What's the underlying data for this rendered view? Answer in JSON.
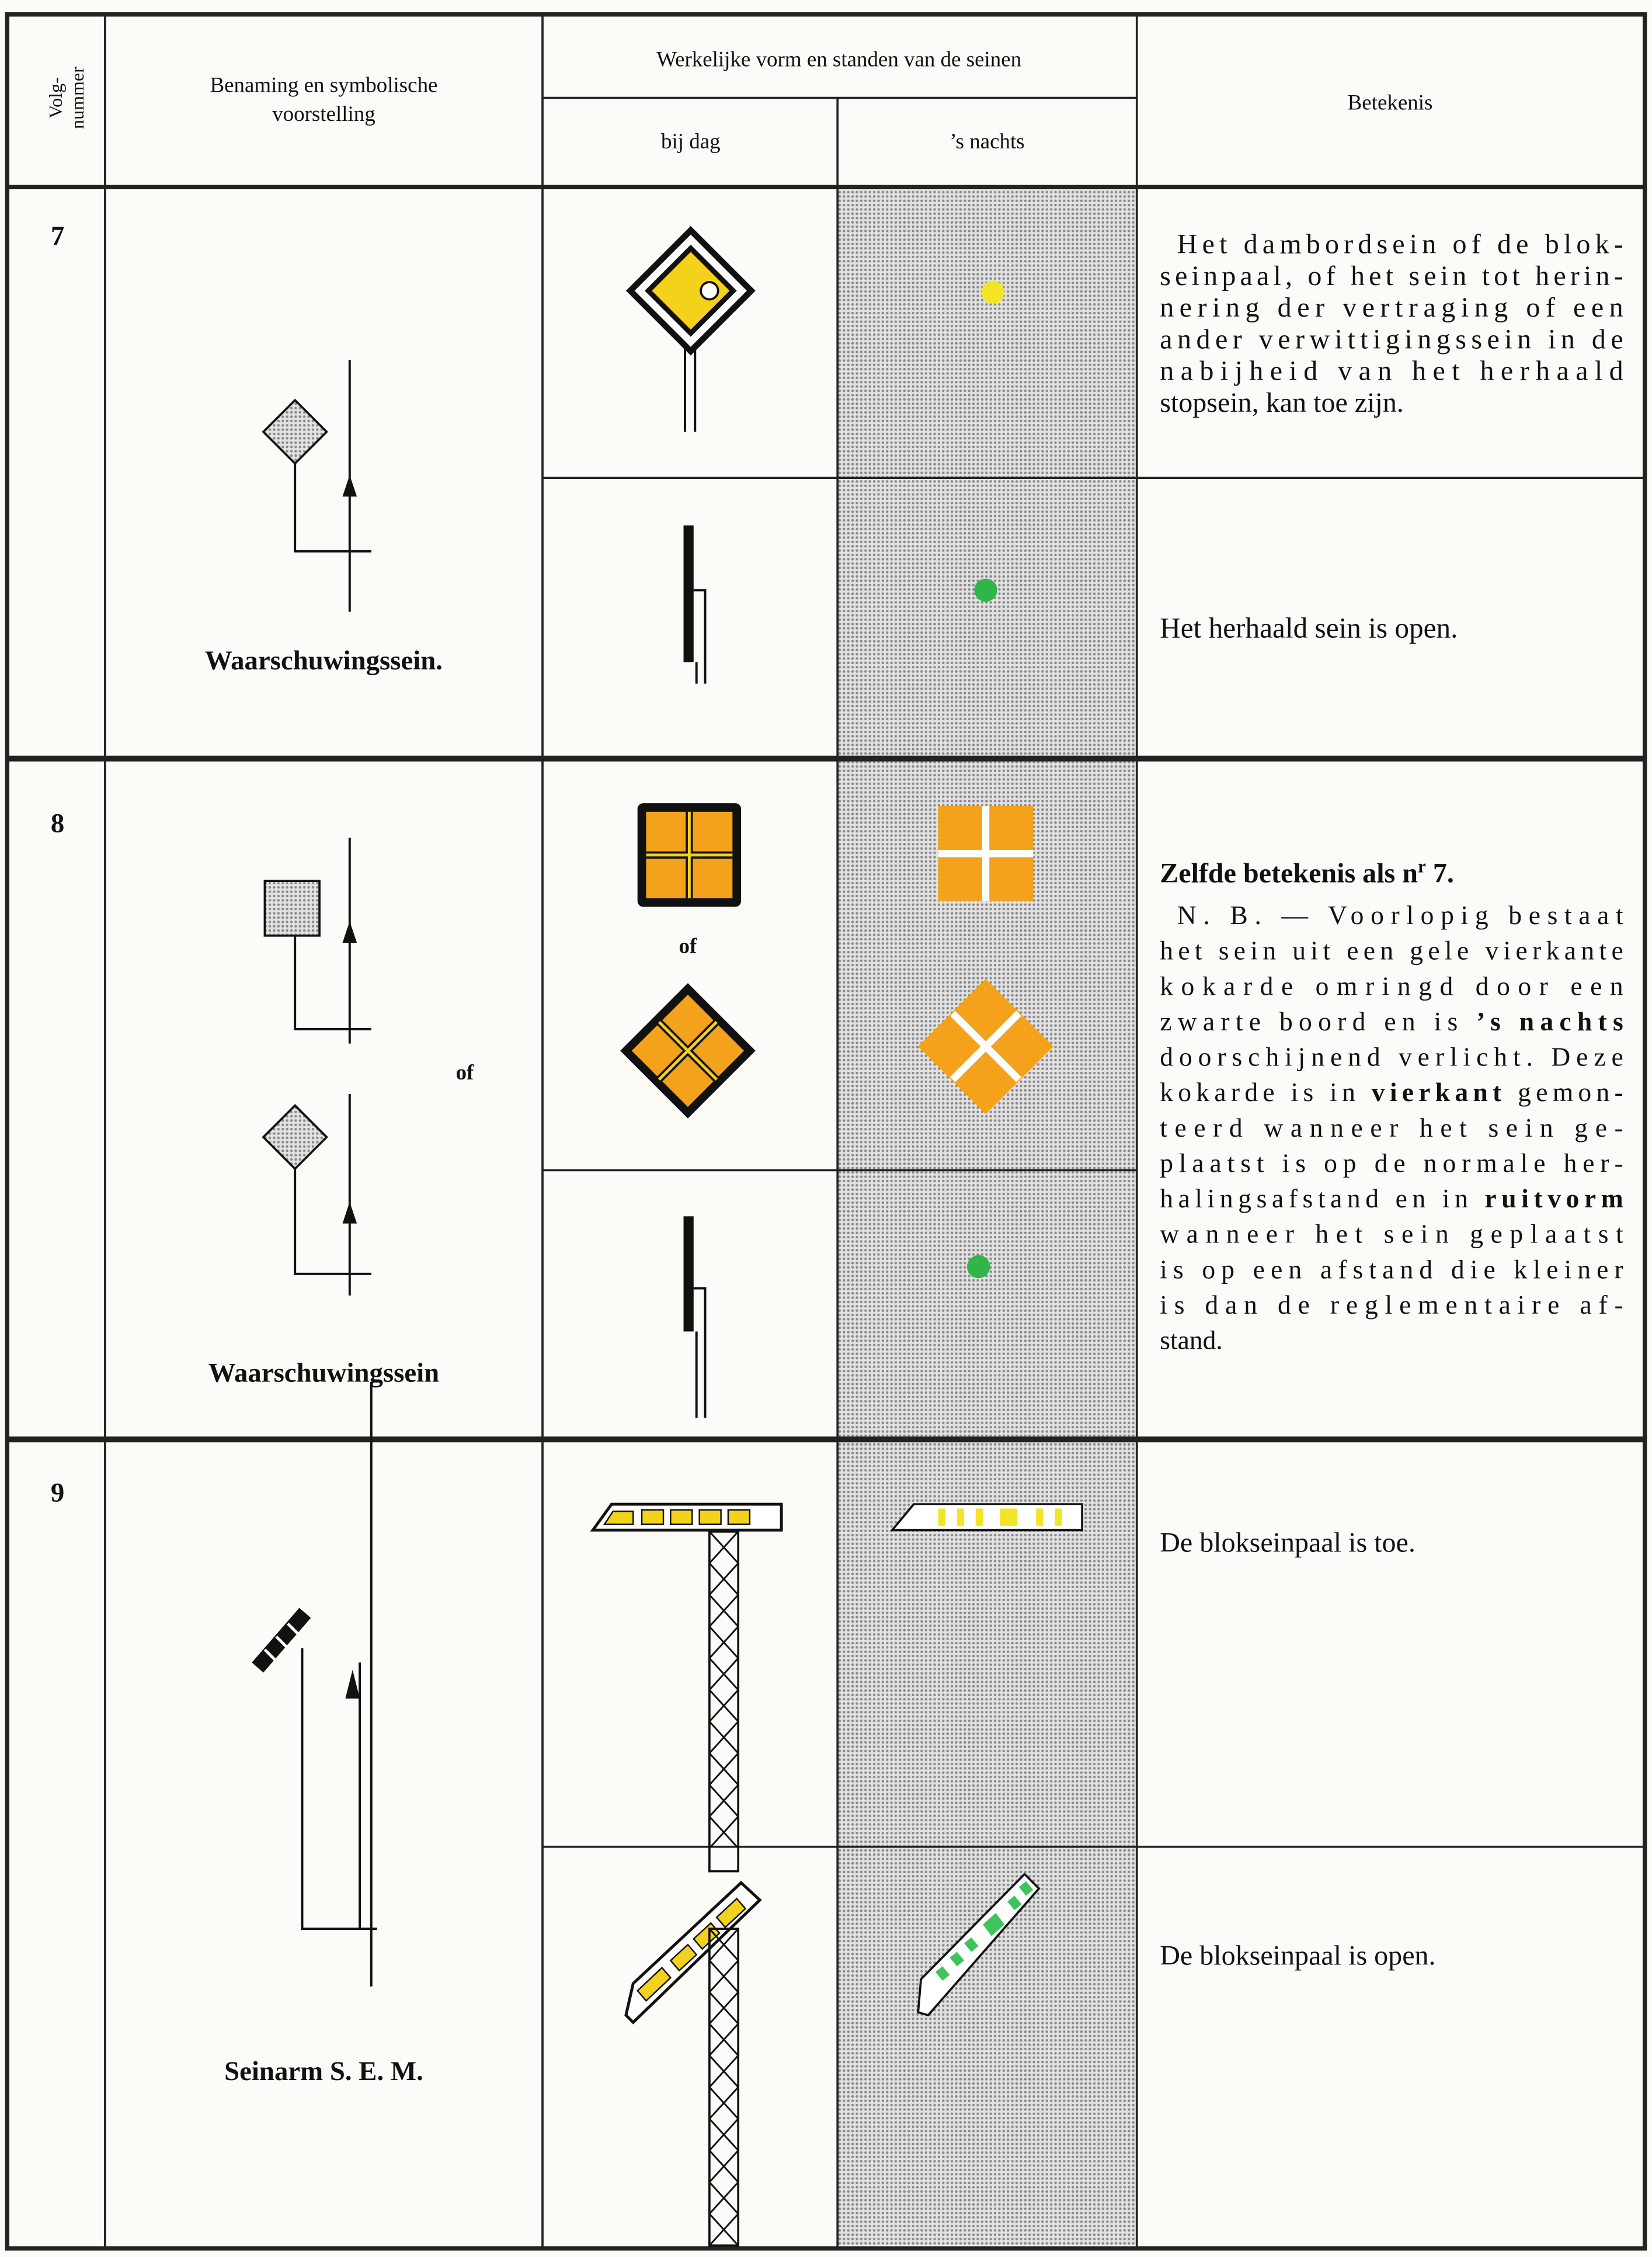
{
  "header": {
    "number": [
      "Volg-",
      "nummer"
    ],
    "name": [
      "Benaming en symbolische",
      "voorstelling"
    ],
    "form": "Werkelijke vorm en standen van de seinen",
    "day": "bij dag",
    "night": "’s nachts",
    "meaning": "Betekenis"
  },
  "rows": [
    {
      "number": 7,
      "name": "Waarschuwingssein.",
      "meanings": [
        [
          "Het dambordsein of de blok-",
          "seinpaal, of het sein tot herin-",
          "nering der vertraging of een",
          "ander verwittigingssein in de",
          "nabijheid van het herhaald",
          "stopsein, kan toe zijn."
        ],
        [
          "Het herhaald sein is open."
        ]
      ]
    },
    {
      "number": 8,
      "name": "Waarschuwingssein",
      "name_of": "of",
      "day_of": "of",
      "meanings": [
        [
          [
            {
              "text": "Zelfde betekenis als n",
              "bold": true
            },
            {
              "text": "r",
              "bold": true,
              "sup": true
            },
            {
              "text": " 7.",
              "bold": true
            }
          ]
        ],
        [
          "N. B. — Voorlopig bestaat",
          "het sein uit een gele vierkante",
          "kokarde omringd door een",
          [
            "zwarte boord en is ",
            {
              "text": "’s nachts",
              "bold": true
            }
          ],
          "doorschijnend verlicht. Deze",
          [
            "kokarde is in ",
            {
              "text": "vierkant",
              "bold": true
            },
            " gemon-"
          ],
          "teerd wanneer het sein ge-",
          "plaatst is op de normale her-",
          [
            "halingsafstand en in ",
            {
              "text": "ruitvorm",
              "bold": true
            }
          ],
          "wanneer het sein geplaatst",
          "is op een afstand die kleiner",
          "is dan de reglementaire af-",
          "stand."
        ]
      ]
    },
    {
      "number": 9,
      "name": "Seinarm S. E. M.",
      "meanings": [
        [
          "De blokseinpaal is toe."
        ],
        [
          "De blokseinpaal is open."
        ]
      ]
    }
  ]
}
